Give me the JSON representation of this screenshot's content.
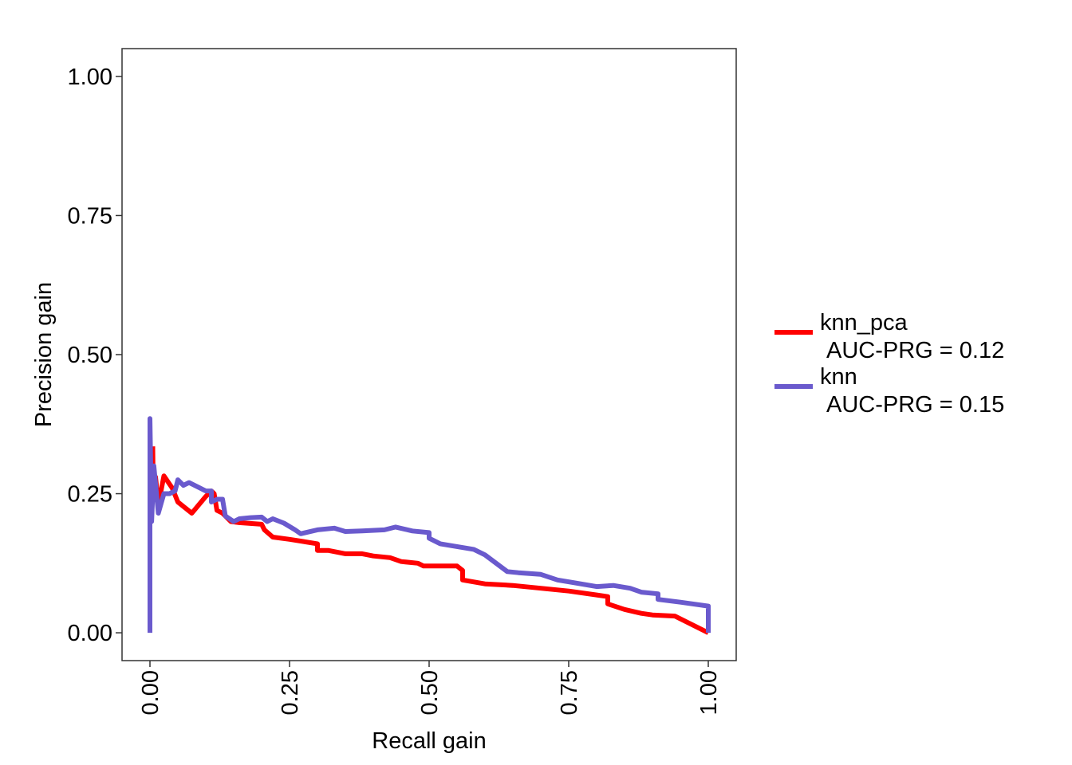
{
  "chart_data": {
    "type": "line",
    "title": "",
    "xlabel": "Recall gain",
    "ylabel": "Precision gain",
    "xlim": [
      -0.05,
      1.05
    ],
    "ylim": [
      -0.05,
      1.05
    ],
    "x_ticks": [
      0,
      0.25,
      0.5,
      0.75,
      1
    ],
    "x_tick_labels": [
      "0.00",
      "0.25",
      "0.50",
      "0.75",
      "1.00"
    ],
    "y_ticks": [
      0,
      0.25,
      0.5,
      0.75,
      1
    ],
    "y_tick_labels": [
      "0.00",
      "0.25",
      "0.50",
      "0.75",
      "1.00"
    ],
    "grid": false,
    "legend_position": "right",
    "series": [
      {
        "name": "knn_pca",
        "label": "AUC-PRG = 0.12",
        "color": "#FF0000",
        "points": [
          [
            0.005,
            0.335
          ],
          [
            0.006,
            0.25
          ],
          [
            0.01,
            0.28
          ],
          [
            0.015,
            0.23
          ],
          [
            0.025,
            0.282
          ],
          [
            0.04,
            0.26
          ],
          [
            0.05,
            0.235
          ],
          [
            0.075,
            0.215
          ],
          [
            0.1,
            0.245
          ],
          [
            0.11,
            0.255
          ],
          [
            0.115,
            0.25
          ],
          [
            0.12,
            0.22
          ],
          [
            0.13,
            0.215
          ],
          [
            0.145,
            0.2
          ],
          [
            0.16,
            0.198
          ],
          [
            0.2,
            0.195
          ],
          [
            0.205,
            0.185
          ],
          [
            0.22,
            0.172
          ],
          [
            0.25,
            0.168
          ],
          [
            0.3,
            0.16
          ],
          [
            0.3,
            0.148
          ],
          [
            0.32,
            0.148
          ],
          [
            0.35,
            0.142
          ],
          [
            0.38,
            0.142
          ],
          [
            0.4,
            0.138
          ],
          [
            0.43,
            0.135
          ],
          [
            0.45,
            0.128
          ],
          [
            0.48,
            0.125
          ],
          [
            0.49,
            0.12
          ],
          [
            0.55,
            0.12
          ],
          [
            0.56,
            0.112
          ],
          [
            0.56,
            0.095
          ],
          [
            0.6,
            0.088
          ],
          [
            0.65,
            0.085
          ],
          [
            0.7,
            0.08
          ],
          [
            0.75,
            0.075
          ],
          [
            0.8,
            0.068
          ],
          [
            0.82,
            0.065
          ],
          [
            0.82,
            0.052
          ],
          [
            0.85,
            0.042
          ],
          [
            0.88,
            0.035
          ],
          [
            0.9,
            0.032
          ],
          [
            0.94,
            0.03
          ],
          [
            0.97,
            0.015
          ],
          [
            1.0,
            0.0
          ]
        ]
      },
      {
        "name": "knn",
        "label": "AUC-PRG = 0.15",
        "color": "#6A5ACD",
        "points": [
          [
            0.0,
            0.0
          ],
          [
            0.0,
            0.385
          ],
          [
            0.003,
            0.2
          ],
          [
            0.007,
            0.3
          ],
          [
            0.015,
            0.215
          ],
          [
            0.025,
            0.25
          ],
          [
            0.035,
            0.25
          ],
          [
            0.045,
            0.255
          ],
          [
            0.05,
            0.275
          ],
          [
            0.06,
            0.265
          ],
          [
            0.07,
            0.27
          ],
          [
            0.08,
            0.265
          ],
          [
            0.09,
            0.26
          ],
          [
            0.1,
            0.255
          ],
          [
            0.11,
            0.255
          ],
          [
            0.11,
            0.235
          ],
          [
            0.12,
            0.24
          ],
          [
            0.13,
            0.24
          ],
          [
            0.135,
            0.21
          ],
          [
            0.15,
            0.2
          ],
          [
            0.16,
            0.205
          ],
          [
            0.18,
            0.207
          ],
          [
            0.2,
            0.208
          ],
          [
            0.21,
            0.2
          ],
          [
            0.22,
            0.205
          ],
          [
            0.24,
            0.197
          ],
          [
            0.26,
            0.185
          ],
          [
            0.27,
            0.178
          ],
          [
            0.3,
            0.185
          ],
          [
            0.33,
            0.188
          ],
          [
            0.35,
            0.182
          ],
          [
            0.38,
            0.183
          ],
          [
            0.42,
            0.185
          ],
          [
            0.44,
            0.19
          ],
          [
            0.47,
            0.183
          ],
          [
            0.5,
            0.18
          ],
          [
            0.5,
            0.17
          ],
          [
            0.52,
            0.16
          ],
          [
            0.55,
            0.155
          ],
          [
            0.58,
            0.15
          ],
          [
            0.6,
            0.14
          ],
          [
            0.62,
            0.125
          ],
          [
            0.64,
            0.11
          ],
          [
            0.66,
            0.108
          ],
          [
            0.7,
            0.105
          ],
          [
            0.73,
            0.095
          ],
          [
            0.76,
            0.09
          ],
          [
            0.8,
            0.083
          ],
          [
            0.83,
            0.085
          ],
          [
            0.86,
            0.08
          ],
          [
            0.88,
            0.073
          ],
          [
            0.91,
            0.07
          ],
          [
            0.91,
            0.06
          ],
          [
            0.95,
            0.055
          ],
          [
            1.0,
            0.048
          ],
          [
            1.0,
            0.0
          ]
        ]
      }
    ]
  }
}
